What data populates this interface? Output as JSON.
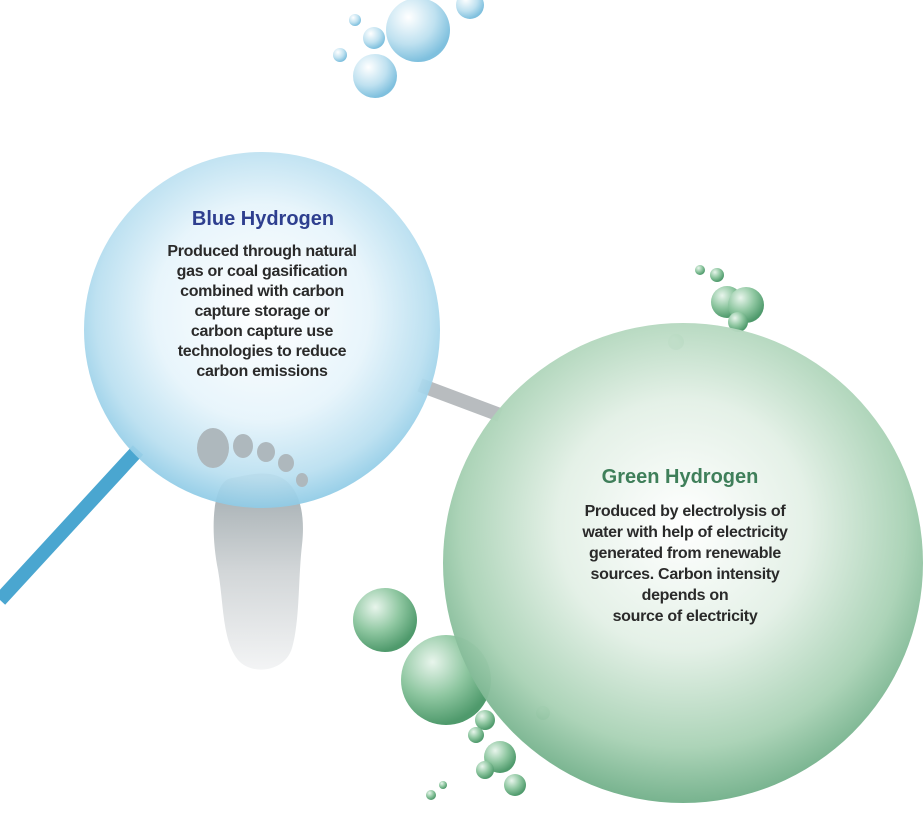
{
  "blue": {
    "title": "Blue Hydrogen",
    "body": "Produced through natural\ngas or coal gasification\ncombined with carbon\ncapture storage or\ncarbon capture use\ntechnologies to reduce\ncarbon emissions",
    "title_color": "#2e3f8f"
  },
  "green": {
    "title": "Green Hydrogen",
    "body": "Produced by electrolysis of\nwater with help of electricity\ngenerated from renewable\nsources. Carbon intensity\ndepends on\nsource of electricity",
    "title_color": "#3f7f5a"
  }
}
